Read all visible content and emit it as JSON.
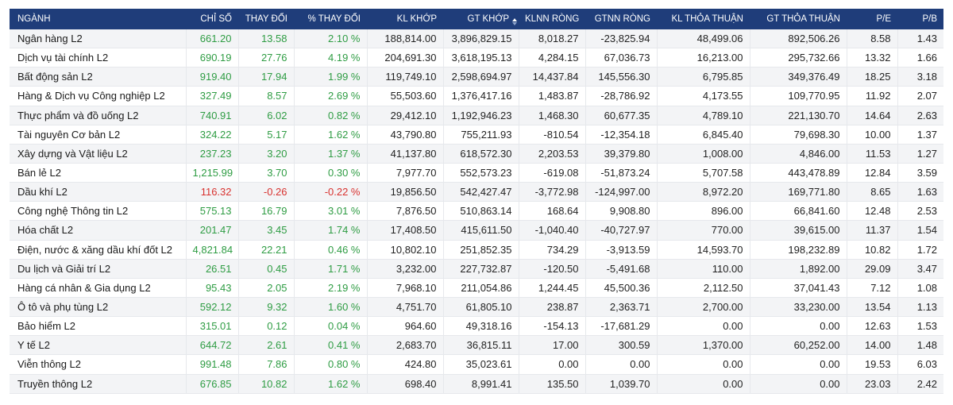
{
  "colors": {
    "header_bg": "#1f3d7a",
    "positive": "#2e9c43",
    "negative": "#d8322f",
    "row_stripe": "#f3f4f6"
  },
  "sort": {
    "column": "GT KHỚP",
    "icon": "sort-icon"
  },
  "columns": [
    "NGÀNH",
    "CHỈ SỐ",
    "THAY ĐỔI",
    "% THAY ĐỔI",
    "KL KHỚP",
    "GT KHỚP",
    "KLNN RÒNG",
    "GTNN RÒNG",
    "KL THỎA THUẬN",
    "GT THỎA THUẬN",
    "P/E",
    "P/B"
  ],
  "rows": [
    {
      "sector": "Ngân hàng L2",
      "index": "661.20",
      "change": "13.58",
      "pct": "2.10 %",
      "kl_khop": "188,814.00",
      "gt_khop": "3,896,829.15",
      "klnn": "8,018.27",
      "gtnn": "-23,825.94",
      "kl_tt": "48,499.06",
      "gt_tt": "892,506.26",
      "pe": "8.58",
      "pb": "1.43",
      "dir": "up"
    },
    {
      "sector": "Dịch vụ tài chính L2",
      "index": "690.19",
      "change": "27.76",
      "pct": "4.19 %",
      "kl_khop": "204,691.30",
      "gt_khop": "3,618,195.13",
      "klnn": "4,284.15",
      "gtnn": "67,036.73",
      "kl_tt": "16,213.00",
      "gt_tt": "295,732.66",
      "pe": "13.32",
      "pb": "1.66",
      "dir": "up"
    },
    {
      "sector": "Bất động sản L2",
      "index": "919.40",
      "change": "17.94",
      "pct": "1.99 %",
      "kl_khop": "119,749.10",
      "gt_khop": "2,598,694.97",
      "klnn": "14,437.84",
      "gtnn": "145,556.30",
      "kl_tt": "6,795.85",
      "gt_tt": "349,376.49",
      "pe": "18.25",
      "pb": "3.18",
      "dir": "up"
    },
    {
      "sector": "Hàng & Dịch vụ Công nghiệp L2",
      "index": "327.49",
      "change": "8.57",
      "pct": "2.69 %",
      "kl_khop": "55,503.60",
      "gt_khop": "1,376,417.16",
      "klnn": "1,483.87",
      "gtnn": "-28,786.92",
      "kl_tt": "4,173.55",
      "gt_tt": "109,770.95",
      "pe": "11.92",
      "pb": "2.07",
      "dir": "up"
    },
    {
      "sector": "Thực phẩm và đồ uống L2",
      "index": "740.91",
      "change": "6.02",
      "pct": "0.82 %",
      "kl_khop": "29,412.10",
      "gt_khop": "1,192,946.23",
      "klnn": "1,468.30",
      "gtnn": "60,677.35",
      "kl_tt": "4,789.10",
      "gt_tt": "221,130.70",
      "pe": "14.64",
      "pb": "2.63",
      "dir": "up"
    },
    {
      "sector": "Tài nguyên Cơ bản L2",
      "index": "324.22",
      "change": "5.17",
      "pct": "1.62 %",
      "kl_khop": "43,790.80",
      "gt_khop": "755,211.93",
      "klnn": "-810.54",
      "gtnn": "-12,354.18",
      "kl_tt": "6,845.40",
      "gt_tt": "79,698.30",
      "pe": "10.00",
      "pb": "1.37",
      "dir": "up"
    },
    {
      "sector": "Xây dựng và Vật liệu L2",
      "index": "237.23",
      "change": "3.20",
      "pct": "1.37 %",
      "kl_khop": "41,137.80",
      "gt_khop": "618,572.30",
      "klnn": "2,203.53",
      "gtnn": "39,379.80",
      "kl_tt": "1,008.00",
      "gt_tt": "4,846.00",
      "pe": "11.53",
      "pb": "1.27",
      "dir": "up"
    },
    {
      "sector": "Bán lẻ L2",
      "index": "1,215.99",
      "change": "3.70",
      "pct": "0.30 %",
      "kl_khop": "7,977.70",
      "gt_khop": "552,573.23",
      "klnn": "-619.08",
      "gtnn": "-51,873.24",
      "kl_tt": "5,707.58",
      "gt_tt": "443,478.89",
      "pe": "12.84",
      "pb": "3.59",
      "dir": "up"
    },
    {
      "sector": "Dầu khí L2",
      "index": "116.32",
      "change": "-0.26",
      "pct": "-0.22 %",
      "kl_khop": "19,856.50",
      "gt_khop": "542,427.47",
      "klnn": "-3,772.98",
      "gtnn": "-124,997.00",
      "kl_tt": "8,972.20",
      "gt_tt": "169,771.80",
      "pe": "8.65",
      "pb": "1.63",
      "dir": "down"
    },
    {
      "sector": "Công nghệ Thông tin L2",
      "index": "575.13",
      "change": "16.79",
      "pct": "3.01 %",
      "kl_khop": "7,876.50",
      "gt_khop": "510,863.14",
      "klnn": "168.64",
      "gtnn": "9,908.80",
      "kl_tt": "896.00",
      "gt_tt": "66,841.60",
      "pe": "12.48",
      "pb": "2.53",
      "dir": "up"
    },
    {
      "sector": "Hóa chất L2",
      "index": "201.47",
      "change": "3.45",
      "pct": "1.74 %",
      "kl_khop": "17,408.50",
      "gt_khop": "415,611.50",
      "klnn": "-1,040.40",
      "gtnn": "-40,727.97",
      "kl_tt": "770.00",
      "gt_tt": "39,615.00",
      "pe": "11.37",
      "pb": "1.54",
      "dir": "up"
    },
    {
      "sector": "Điện, nước & xăng dầu khí đốt L2",
      "index": "4,821.84",
      "change": "22.21",
      "pct": "0.46 %",
      "kl_khop": "10,802.10",
      "gt_khop": "251,852.35",
      "klnn": "734.29",
      "gtnn": "-3,913.59",
      "kl_tt": "14,593.70",
      "gt_tt": "198,232.89",
      "pe": "10.82",
      "pb": "1.72",
      "dir": "up"
    },
    {
      "sector": "Du lịch và Giải trí L2",
      "index": "26.51",
      "change": "0.45",
      "pct": "1.71 %",
      "kl_khop": "3,232.00",
      "gt_khop": "227,732.87",
      "klnn": "-120.50",
      "gtnn": "-5,491.68",
      "kl_tt": "110.00",
      "gt_tt": "1,892.00",
      "pe": "29.09",
      "pb": "3.47",
      "dir": "up"
    },
    {
      "sector": "Hàng cá nhân & Gia dụng L2",
      "index": "95.43",
      "change": "2.05",
      "pct": "2.19 %",
      "kl_khop": "7,968.10",
      "gt_khop": "211,054.86",
      "klnn": "1,244.45",
      "gtnn": "45,500.36",
      "kl_tt": "2,112.50",
      "gt_tt": "37,041.43",
      "pe": "7.12",
      "pb": "1.08",
      "dir": "up"
    },
    {
      "sector": "Ô tô và phụ tùng L2",
      "index": "592.12",
      "change": "9.32",
      "pct": "1.60 %",
      "kl_khop": "4,751.70",
      "gt_khop": "61,805.10",
      "klnn": "238.87",
      "gtnn": "2,363.71",
      "kl_tt": "2,700.00",
      "gt_tt": "33,230.00",
      "pe": "13.54",
      "pb": "1.13",
      "dir": "up"
    },
    {
      "sector": "Bảo hiểm L2",
      "index": "315.01",
      "change": "0.12",
      "pct": "0.04 %",
      "kl_khop": "964.60",
      "gt_khop": "49,318.16",
      "klnn": "-154.13",
      "gtnn": "-17,681.29",
      "kl_tt": "0.00",
      "gt_tt": "0.00",
      "pe": "12.63",
      "pb": "1.53",
      "dir": "up"
    },
    {
      "sector": "Y tế L2",
      "index": "644.72",
      "change": "2.61",
      "pct": "0.41 %",
      "kl_khop": "2,683.70",
      "gt_khop": "36,815.11",
      "klnn": "17.00",
      "gtnn": "300.59",
      "kl_tt": "1,370.00",
      "gt_tt": "60,252.00",
      "pe": "14.00",
      "pb": "1.48",
      "dir": "up"
    },
    {
      "sector": "Viễn thông L2",
      "index": "991.48",
      "change": "7.86",
      "pct": "0.80 %",
      "kl_khop": "424.80",
      "gt_khop": "35,023.61",
      "klnn": "0.00",
      "gtnn": "0.00",
      "kl_tt": "0.00",
      "gt_tt": "0.00",
      "pe": "19.53",
      "pb": "6.03",
      "dir": "up"
    },
    {
      "sector": "Truyền thông L2",
      "index": "676.85",
      "change": "10.82",
      "pct": "1.62 %",
      "kl_khop": "698.40",
      "gt_khop": "8,991.41",
      "klnn": "135.50",
      "gtnn": "1,039.70",
      "kl_tt": "0.00",
      "gt_tt": "0.00",
      "pe": "23.03",
      "pb": "2.42",
      "dir": "up"
    }
  ]
}
